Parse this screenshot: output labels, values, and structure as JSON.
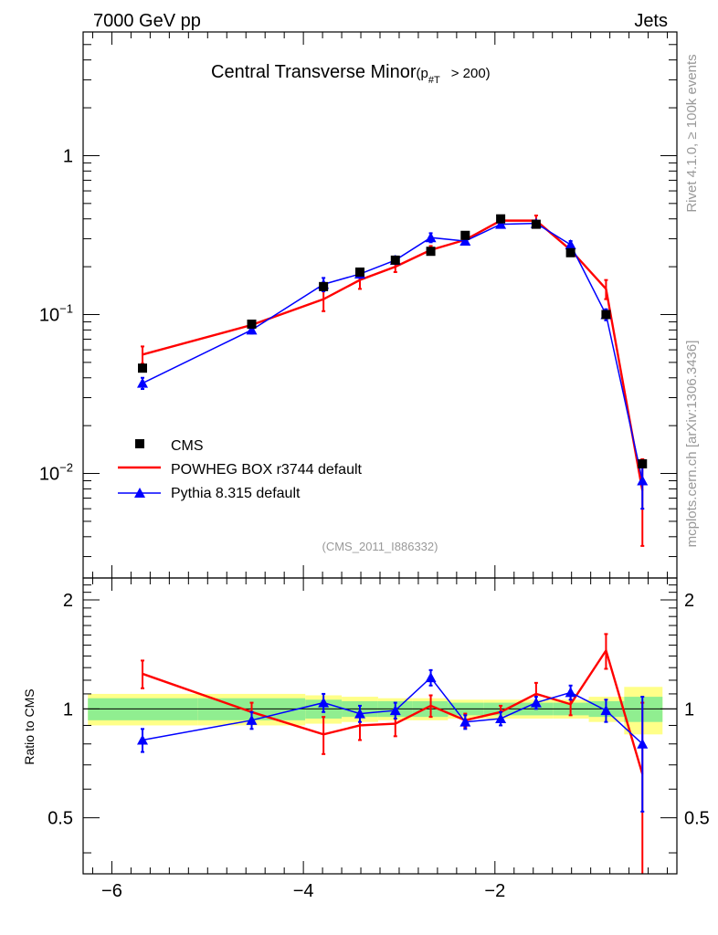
{
  "header": {
    "left": "7000 GeV pp",
    "right": "Jets"
  },
  "side": {
    "rivet": "Rivet 4.1.0, ≥ 100k events",
    "mcplots": "mcplots.cern.ch [arXiv:1306.3436]"
  },
  "chart_data": {
    "type": "line",
    "title": "Central Transverse Minor",
    "title_suffix": "(p",
    "title_sub": "#T",
    "title_tail": "> 200)",
    "analysis_label": "(CMS_2011_I886332)",
    "xlabel": "",
    "ylabel": "",
    "ratio_ylabel": "Ratio to CMS",
    "xlim": [
      -6.3,
      -0.1
    ],
    "ylim": [
      0.0022,
      6.0
    ],
    "yscale": "log",
    "ratio_ylim": [
      0.35,
      2.3
    ],
    "x_ticks": [
      -6,
      -4,
      -2
    ],
    "x_tick_labels": [
      "−6",
      "−4",
      "−2"
    ],
    "y_ticks": [
      {
        "value": 1,
        "base": "1",
        "exp": ""
      },
      {
        "value": 0.1,
        "base": "10",
        "exp": "−1"
      },
      {
        "value": 0.01,
        "base": "10",
        "exp": "−2"
      }
    ],
    "ratio_ticks": [
      {
        "value": 2,
        "label": "2"
      },
      {
        "value": 1,
        "label": "1"
      },
      {
        "value": 0.5,
        "label": "0.5"
      }
    ],
    "legend": [
      "CMS",
      "POWHEG BOX r3744 default",
      "Pythia 8.315 default"
    ],
    "x": [
      -5.68,
      -4.54,
      -3.79,
      -3.41,
      -3.04,
      -2.67,
      -2.31,
      -1.94,
      -1.57,
      -1.21,
      -0.84,
      -0.46
    ],
    "bin_edges": [
      -6.25,
      -5.1,
      -3.98,
      -3.6,
      -3.22,
      -2.86,
      -2.49,
      -2.12,
      -1.75,
      -1.39,
      -1.02,
      -0.65,
      -0.25
    ],
    "cms_values": [
      0.046,
      0.087,
      0.15,
      0.185,
      0.22,
      0.25,
      0.315,
      0.4,
      0.37,
      0.245,
      0.1,
      0.0115
    ],
    "series": [
      {
        "name": "POWHEG BOX r3744 default",
        "color": "#ff0000",
        "values": [
          0.056,
          0.086,
          0.125,
          0.165,
          0.2,
          0.255,
          0.295,
          0.39,
          0.39,
          0.255,
          0.145,
          0.0078
        ],
        "err_up": [
          0.007,
          0.004,
          0.02,
          0.02,
          0.015,
          0.015,
          0.01,
          0.015,
          0.03,
          0.02,
          0.02,
          0.0045
        ],
        "err_down": [
          0.007,
          0.004,
          0.02,
          0.02,
          0.015,
          0.015,
          0.01,
          0.015,
          0.03,
          0.02,
          0.02,
          0.0043
        ],
        "ratio": [
          1.25,
          0.98,
          0.85,
          0.9,
          0.91,
          1.02,
          0.93,
          0.98,
          1.1,
          1.03,
          1.45,
          0.66
        ],
        "ratio_err": [
          0.11,
          0.06,
          0.1,
          0.08,
          0.07,
          0.07,
          0.04,
          0.04,
          0.08,
          0.07,
          0.16,
          0.38
        ]
      },
      {
        "name": "Pythia 8.315 default",
        "color": "#0000ff",
        "values": [
          0.037,
          0.08,
          0.155,
          0.18,
          0.22,
          0.305,
          0.29,
          0.37,
          0.375,
          0.275,
          0.1,
          0.009
        ],
        "err_up": [
          0.003,
          0.004,
          0.015,
          0.01,
          0.012,
          0.02,
          0.01,
          0.01,
          0.01,
          0.015,
          0.008,
          0.003
        ],
        "err_down": [
          0.003,
          0.004,
          0.015,
          0.01,
          0.012,
          0.02,
          0.01,
          0.01,
          0.01,
          0.015,
          0.008,
          0.003
        ],
        "ratio": [
          0.82,
          0.93,
          1.04,
          0.97,
          0.99,
          1.22,
          0.92,
          0.94,
          1.04,
          1.11,
          0.99,
          0.8
        ],
        "ratio_err": [
          0.06,
          0.05,
          0.06,
          0.05,
          0.05,
          0.06,
          0.04,
          0.04,
          0.04,
          0.05,
          0.07,
          0.28
        ]
      }
    ],
    "band_inner": [
      0.07,
      0.07,
      0.06,
      0.05,
      0.05,
      0.05,
      0.04,
      0.04,
      0.04,
      0.04,
      0.05,
      0.08
    ],
    "band_outer": [
      0.1,
      0.1,
      0.09,
      0.08,
      0.07,
      0.07,
      0.06,
      0.06,
      0.06,
      0.06,
      0.08,
      0.15
    ],
    "colors": {
      "band_inner": "#90ee90",
      "band_outer": "#ffff88",
      "cms": "#000000"
    }
  }
}
